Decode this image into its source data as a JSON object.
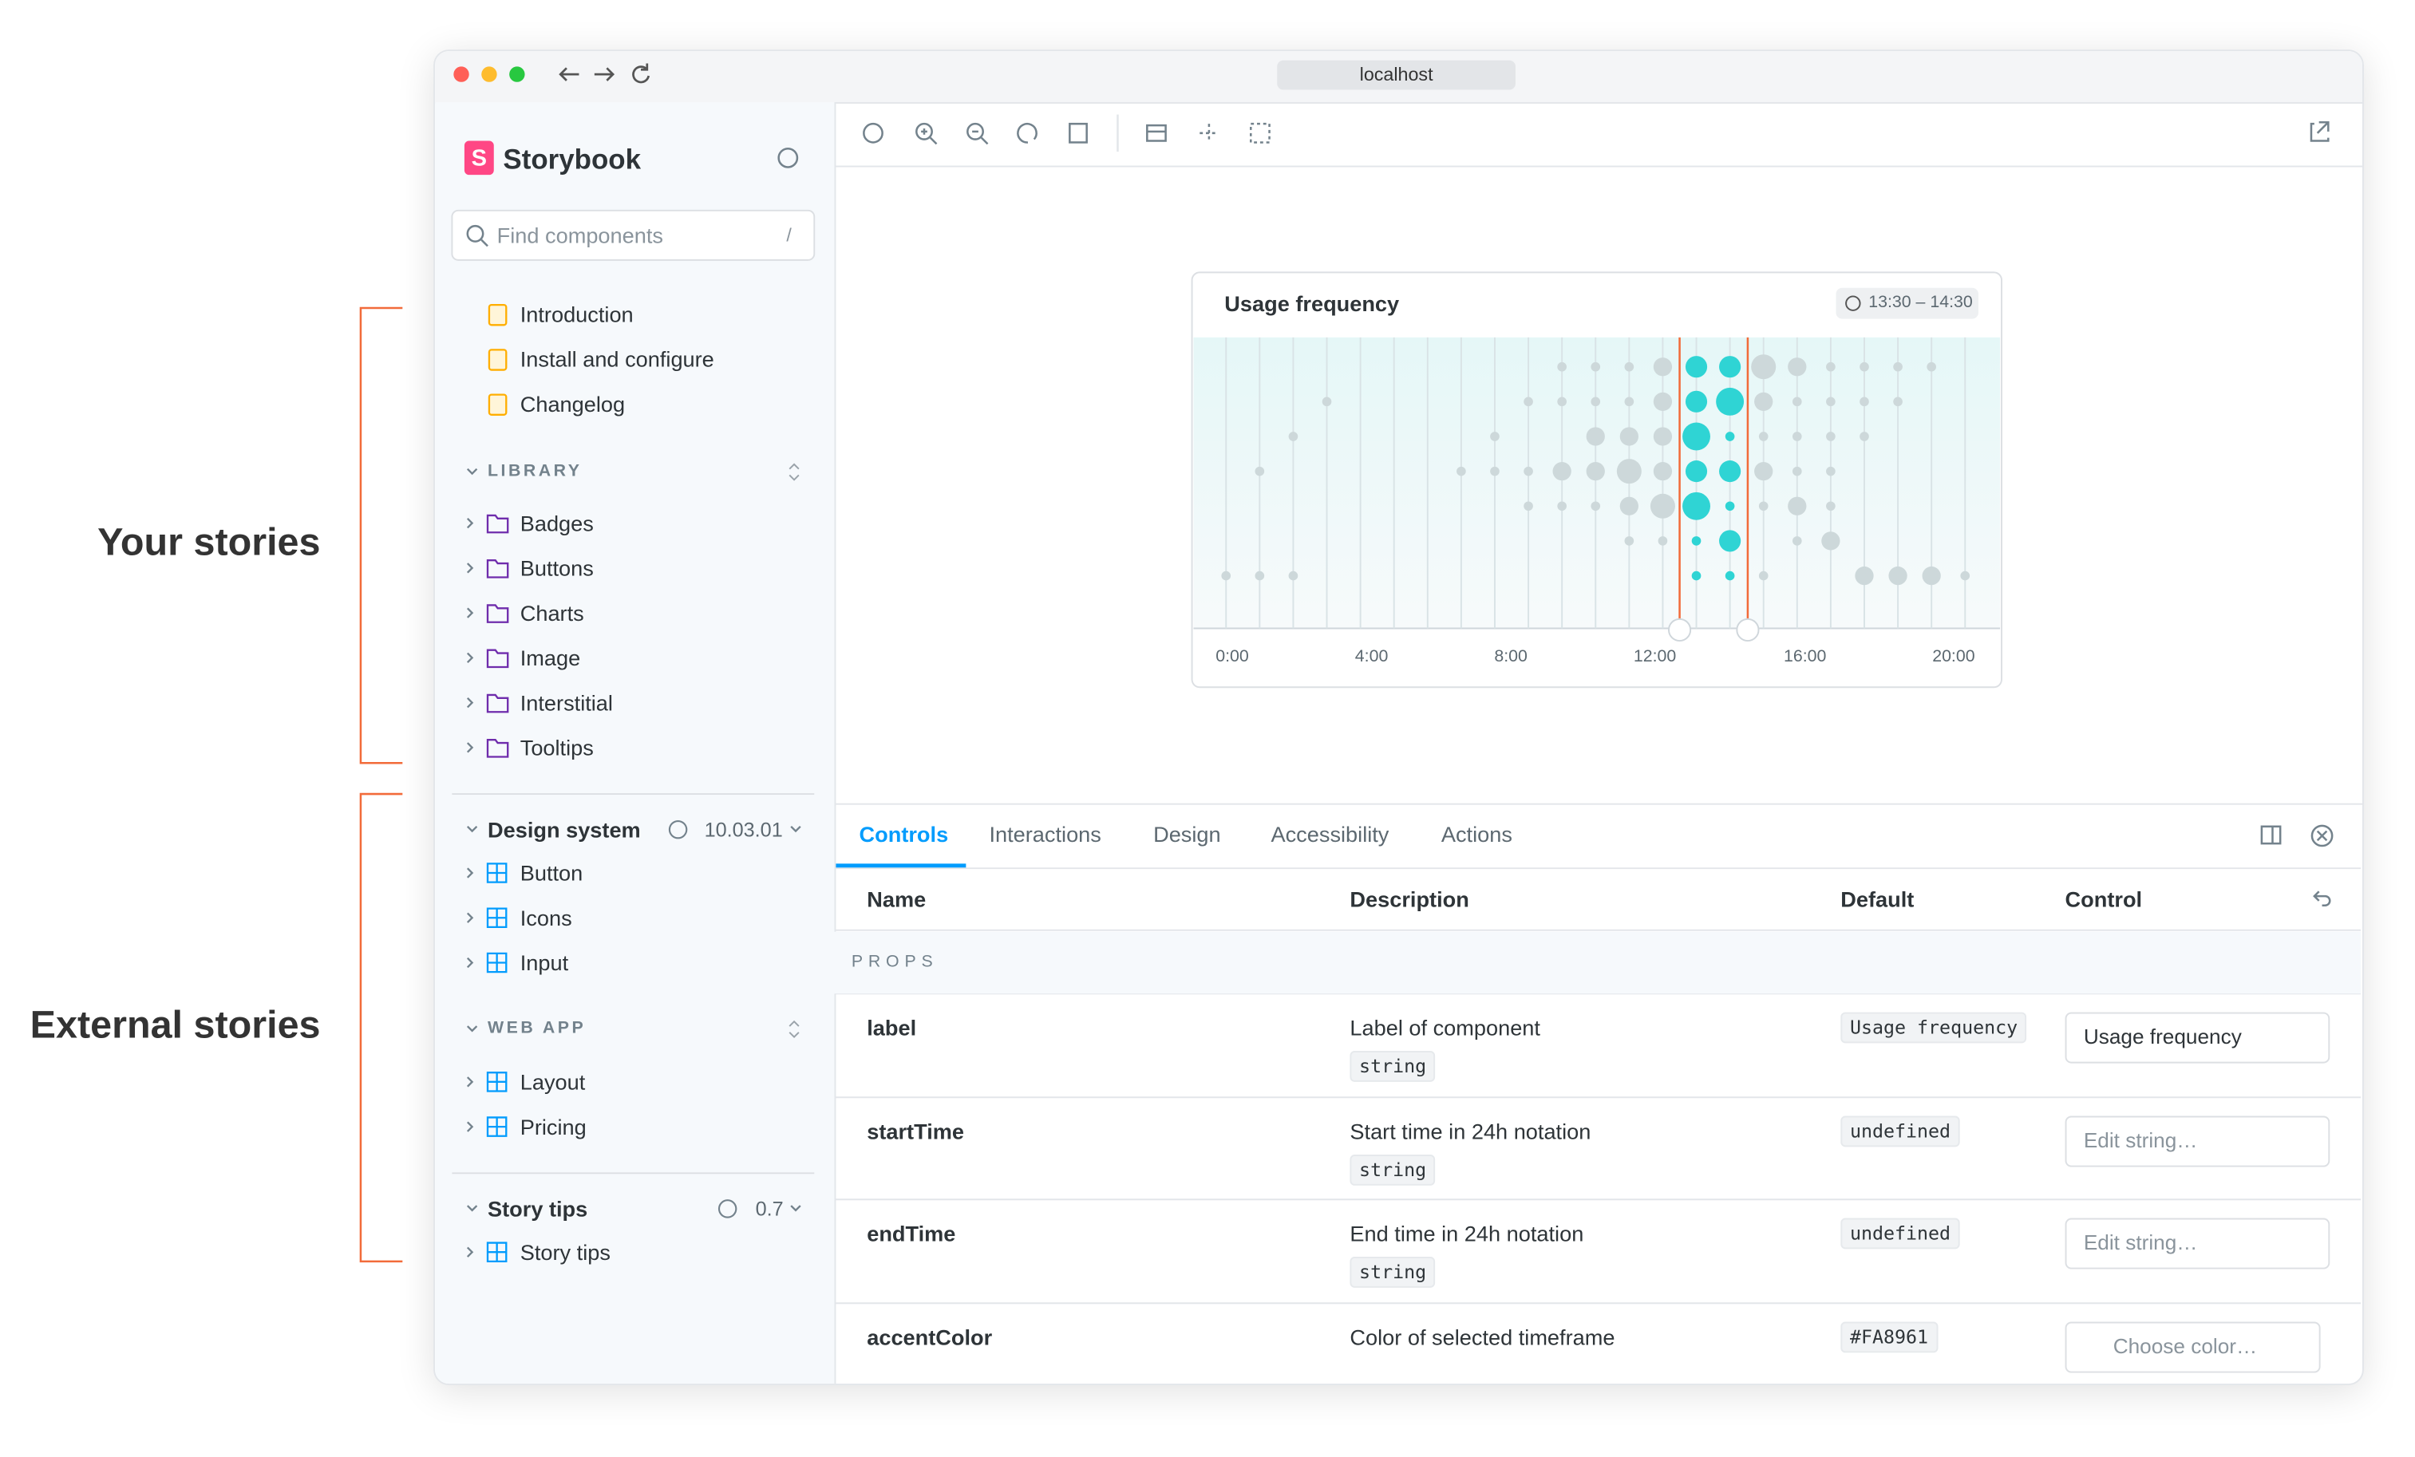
{
  "annotations": {
    "your_stories": "Your stories",
    "external_stories": "External stories"
  },
  "browser": {
    "url": "localhost"
  },
  "sidebar": {
    "brand": "Storybook",
    "search_placeholder": "Find components",
    "search_shortcut": "/",
    "docs": [
      "Introduction",
      "Install and configure",
      "Changelog"
    ],
    "library": {
      "title": "LIBRARY",
      "items": [
        "Badges",
        "Buttons",
        "Charts",
        "Image",
        "Interstitial",
        "Tooltips"
      ]
    },
    "design_system": {
      "title": "Design system",
      "version": "10.03.01",
      "items": [
        "Button",
        "Icons",
        "Input"
      ]
    },
    "web_app": {
      "title": "WEB APP",
      "items": [
        "Layout",
        "Pricing"
      ]
    },
    "story_tips": {
      "title": "Story tips",
      "version": "0.7",
      "items": [
        "Story tips"
      ]
    }
  },
  "preview": {
    "title": "Usage frequency",
    "time_range": "13:30 – 14:30",
    "x_labels": [
      "0:00",
      "4:00",
      "8:00",
      "12:00",
      "16:00",
      "20:00"
    ]
  },
  "addons": {
    "tabs": [
      "Controls",
      "Interactions",
      "Design",
      "Accessibility",
      "Actions"
    ],
    "columns": [
      "Name",
      "Description",
      "Default",
      "Control"
    ],
    "section": "PROPS",
    "rows": [
      {
        "name": "label",
        "description": "Label of component",
        "type": "string",
        "default": "Usage frequency",
        "control_value": "Usage frequency"
      },
      {
        "name": "startTime",
        "description": "Start time in 24h notation",
        "type": "string",
        "default": "undefined",
        "control_placeholder": "Edit string…"
      },
      {
        "name": "endTime",
        "description": "End time in 24h notation",
        "type": "string",
        "default": "undefined",
        "control_placeholder": "Edit string…"
      },
      {
        "name": "accentColor",
        "description": "Color of selected timeframe",
        "default": "#FA8961",
        "control_placeholder": "Choose color…"
      }
    ]
  }
}
